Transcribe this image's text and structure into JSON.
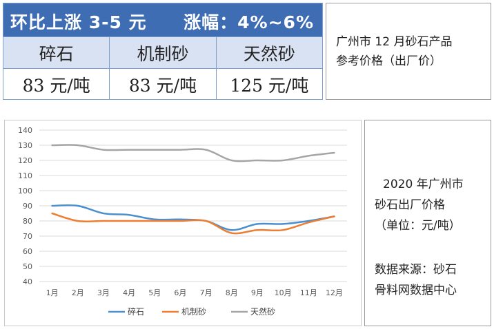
{
  "summary_table": {
    "header_left": "环比上涨 3-5 元",
    "header_right": "涨幅：4%~6%",
    "columns": [
      "碎石",
      "机制砂",
      "天然砂"
    ],
    "prices": [
      "83 元/吨",
      "83 元/吨",
      "125 元/吨"
    ]
  },
  "side_note_top": {
    "line1": "广州市 12 月砂石产品",
    "line2": "参考价格（出厂价）"
  },
  "side_note_bottom": {
    "title_line1": "2020 年广州市",
    "title_line2": "砂石出厂价格",
    "title_line3": "（单位：元/吨）",
    "source_line1": "数据来源：砂石",
    "source_line2": "骨料网数据中心"
  },
  "colors": {
    "header_bg": "#3f6db4",
    "label_row_bg": "#d9e2f2",
    "series_gravel": "#4a8fd0",
    "series_machine_sand": "#ed7d31",
    "series_natural_sand": "#a5a5a5"
  },
  "chart_data": {
    "type": "line",
    "title": "",
    "xlabel": "",
    "ylabel": "",
    "categories": [
      "1月",
      "2月",
      "3月",
      "4月",
      "5月",
      "6月",
      "7月",
      "8月",
      "9月",
      "10月",
      "11月",
      "12月"
    ],
    "ylim": [
      40,
      140
    ],
    "yticks": [
      40,
      50,
      60,
      70,
      80,
      90,
      100,
      110,
      120,
      130,
      140
    ],
    "grid": true,
    "legend": "bottom",
    "series": [
      {
        "name": "碎石",
        "color": "#4a8fd0",
        "values": [
          90,
          90,
          85,
          84,
          81,
          81,
          80,
          74,
          78,
          78,
          80,
          83
        ]
      },
      {
        "name": "机制砂",
        "color": "#ed7d31",
        "values": [
          85,
          80,
          80,
          80,
          80,
          80,
          80,
          72,
          74,
          74,
          79,
          83
        ]
      },
      {
        "name": "天然砂",
        "color": "#a5a5a5",
        "values": [
          130,
          130,
          127,
          127,
          127,
          127,
          127,
          120,
          120,
          120,
          123,
          125
        ]
      }
    ]
  }
}
